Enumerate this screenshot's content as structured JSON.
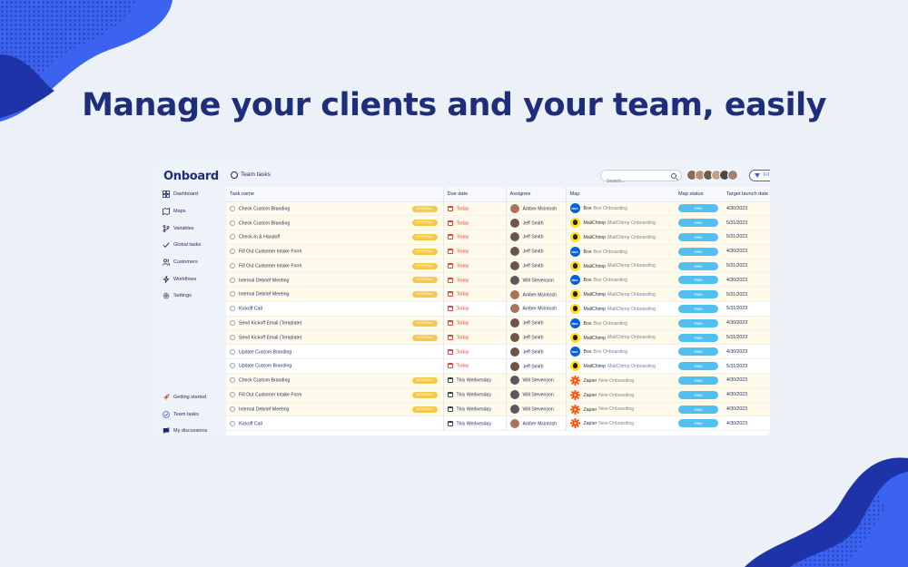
{
  "headline": "Manage your clients and your team, easily",
  "colors": {
    "background": "#ecf1f8",
    "headline": "#1e2e7a",
    "blob_light": "#3b63f0",
    "blob_dark": "#1e33a8",
    "internal_badge": "#f6c94a",
    "status_pill": "#50c0f0",
    "due_today": "#e0483e",
    "highlight_row": "#fffaea"
  },
  "app": {
    "logo": "Onboard",
    "sidebar": {
      "items": [
        {
          "label": "Dashboard",
          "icon": "grid-icon"
        },
        {
          "label": "Maps",
          "icon": "map-icon"
        },
        {
          "label": "Variables",
          "icon": "branch-icon"
        },
        {
          "label": "Global tasks",
          "icon": "check-icon"
        },
        {
          "label": "Customers",
          "icon": "users-icon"
        },
        {
          "label": "Workflows",
          "icon": "bolt-icon"
        },
        {
          "label": "Settings",
          "icon": "gear-icon"
        }
      ],
      "bottom_items": [
        {
          "label": "Getting started",
          "icon": "rocket-icon"
        },
        {
          "label": "Team tasks",
          "icon": "check-circle-icon"
        },
        {
          "label": "My discussions",
          "icon": "chat-icon"
        }
      ]
    },
    "topbar": {
      "title": "Team tasks",
      "search_placeholder": "Search...",
      "filter_label": "Fil"
    },
    "table": {
      "columns": [
        "Task name",
        "Due date",
        "Assignee",
        "Map",
        "Map status",
        "Target launch date"
      ],
      "internal_label": "INTERNAL",
      "rows": [
        {
          "task": "Check Custom Branding",
          "internal": true,
          "due": "Today",
          "due_today": true,
          "assignee": "Amber Mcintosh",
          "map_icon": "box",
          "map": "Box",
          "map_sub": "Box Onboarding",
          "status": "New",
          "launch": "4/30/2023"
        },
        {
          "task": "Check Custom Branding",
          "internal": true,
          "due": "Today",
          "due_today": true,
          "assignee": "Jeff Smith",
          "map_icon": "mailchimp",
          "map": "MailChimp",
          "map_sub": "MailChimp Onboarding",
          "status": "New",
          "launch": "5/31/2023"
        },
        {
          "task": "Check-In & Handoff",
          "internal": true,
          "due": "Today",
          "due_today": true,
          "assignee": "Jeff Smith",
          "map_icon": "mailchimp",
          "map": "MailChimp",
          "map_sub": "MailChimp Onboarding",
          "status": "New",
          "launch": "5/31/2023"
        },
        {
          "task": "Fill Out Customer Intake Form",
          "internal": true,
          "due": "Today",
          "due_today": true,
          "assignee": "Jeff Smith",
          "map_icon": "box",
          "map": "Box",
          "map_sub": "Box Onboarding",
          "status": "New",
          "launch": "4/30/2023"
        },
        {
          "task": "Fill Out Customer Intake Form",
          "internal": true,
          "due": "Today",
          "due_today": true,
          "assignee": "Jeff Smith",
          "map_icon": "mailchimp",
          "map": "MailChimp",
          "map_sub": "MailChimp Onboarding",
          "status": "New",
          "launch": "5/31/2023"
        },
        {
          "task": "Internal Debrief Meeting",
          "internal": true,
          "due": "Today",
          "due_today": true,
          "assignee": "Will Stevenson",
          "map_icon": "box",
          "map": "Box",
          "map_sub": "Box Onboarding",
          "status": "New",
          "launch": "4/30/2023"
        },
        {
          "task": "Internal Debrief Meeting",
          "internal": true,
          "due": "Today",
          "due_today": true,
          "assignee": "Amber Mcintosh",
          "map_icon": "mailchimp",
          "map": "MailChimp",
          "map_sub": "MailChimp Onboarding",
          "status": "New",
          "launch": "5/31/2023"
        },
        {
          "task": "Kickoff Call",
          "internal": false,
          "due": "Today",
          "due_today": true,
          "assignee": "Amber Mcintosh",
          "map_icon": "mailchimp",
          "map": "MailChimp",
          "map_sub": "MailChimp Onboarding",
          "status": "New",
          "launch": "5/31/2023"
        },
        {
          "task": "Send Kickoff Email (Template)",
          "internal": true,
          "due": "Today",
          "due_today": true,
          "assignee": "Jeff Smith",
          "map_icon": "box",
          "map": "Box",
          "map_sub": "Box Onboarding",
          "status": "New",
          "launch": "4/30/2023"
        },
        {
          "task": "Send Kickoff Email (Template)",
          "internal": true,
          "due": "Today",
          "due_today": true,
          "assignee": "Jeff Smith",
          "map_icon": "mailchimp",
          "map": "MailChimp",
          "map_sub": "MailChimp Onboarding",
          "status": "New",
          "launch": "5/31/2023"
        },
        {
          "task": "Update Custom Branding",
          "internal": false,
          "due": "Today",
          "due_today": true,
          "assignee": "Jeff Smith",
          "map_icon": "box",
          "map": "Box",
          "map_sub": "Box Onboarding",
          "status": "New",
          "launch": "4/30/2023"
        },
        {
          "task": "Update Custom Branding",
          "internal": false,
          "due": "Today",
          "due_today": true,
          "assignee": "Jeff Smith",
          "map_icon": "mailchimp",
          "map": "MailChimp",
          "map_sub": "MailChimp Onboarding",
          "status": "New",
          "launch": "5/31/2023"
        },
        {
          "task": "Check Custom Branding",
          "internal": true,
          "due": "This Wednesday",
          "due_today": false,
          "assignee": "Will Stevenson",
          "map_icon": "zapier",
          "map": "Zapier",
          "map_sub": "New Onboarding",
          "status": "New",
          "launch": "4/30/2023"
        },
        {
          "task": "Fill Out Customer Intake Form",
          "internal": true,
          "due": "This Wednesday",
          "due_today": false,
          "assignee": "Will Stevenson",
          "map_icon": "zapier",
          "map": "Zapier",
          "map_sub": "New Onboarding",
          "status": "New",
          "launch": "4/30/2023"
        },
        {
          "task": "Internal Debrief Meeting",
          "internal": true,
          "due": "This Wednesday",
          "due_today": false,
          "assignee": "Will Stevenson",
          "map_icon": "zapier",
          "map": "Zapier",
          "map_sub": "New Onboarding",
          "status": "New",
          "launch": "4/30/2023"
        },
        {
          "task": "Kickoff Call",
          "internal": false,
          "due": "This Wednesday",
          "due_today": false,
          "assignee": "Amber Mcintosh",
          "map_icon": "zapier",
          "map": "Zapier",
          "map_sub": "New Onboarding",
          "status": "New",
          "launch": "4/30/2023"
        }
      ]
    }
  }
}
